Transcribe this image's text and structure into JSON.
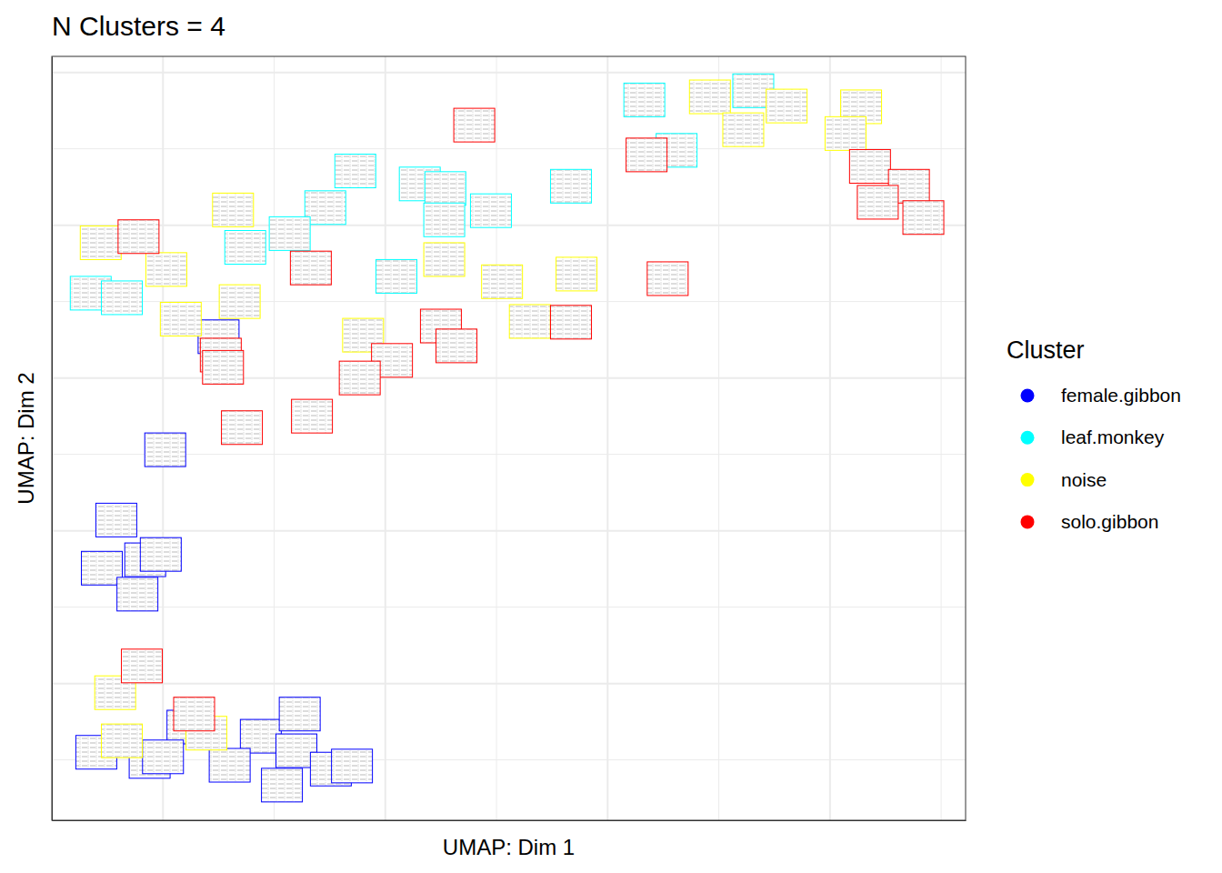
{
  "chart_data": {
    "type": "scatter",
    "title": "N Clusters = 4",
    "x_label": "UMAP: Dim 1",
    "y_label": "UMAP: Dim 2",
    "legend_title": "Cluster",
    "legend": "right",
    "grid": true,
    "tick_labels": false,
    "marker": "rect",
    "xlim": [
      -1.0,
      7.22
    ],
    "ylim": [
      -1.79,
      8.21
    ],
    "xticks": [
      0,
      1,
      2,
      3,
      4,
      5,
      6,
      7
    ],
    "yticks": [
      -1,
      0,
      1,
      2,
      3,
      4,
      5,
      6,
      7,
      8
    ],
    "series": [
      {
        "name": "female.gibbon",
        "color": "#0000ff",
        "x": [
          0.5,
          0.02,
          -0.42,
          -0.55,
          -0.16,
          -0.02,
          -0.23,
          -0.6,
          -0.12,
          0.22,
          0.88,
          1.23,
          1.2,
          0.6,
          1.07,
          1.51,
          1.7,
          0.0
        ],
        "y": [
          4.54,
          3.06,
          2.14,
          1.51,
          1.62,
          1.69,
          1.17,
          -0.9,
          -1.02,
          -0.57,
          -0.69,
          -0.4,
          -0.88,
          -1.07,
          -1.33,
          -1.12,
          -1.08,
          -0.96
        ]
      },
      {
        "name": "leaf.monkey",
        "color": "#00ffff",
        "x": [
          4.33,
          5.31,
          4.62,
          1.73,
          2.31,
          2.54,
          2.95,
          3.67,
          2.53,
          1.46,
          1.14,
          0.74,
          -0.65,
          -0.37,
          2.1
        ],
        "y": [
          7.64,
          7.76,
          6.98,
          6.71,
          6.54,
          6.48,
          6.19,
          6.51,
          6.07,
          6.23,
          5.89,
          5.71,
          5.11,
          5.05,
          5.33
        ]
      },
      {
        "name": "noise",
        "color": "#ffff00",
        "x": [
          4.92,
          5.61,
          6.28,
          5.22,
          6.14,
          0.63,
          -0.56,
          0.03,
          0.16,
          0.69,
          2.53,
          3.05,
          3.72,
          1.8,
          3.3,
          -0.43,
          -0.37,
          0.39
        ],
        "y": [
          7.68,
          7.56,
          7.55,
          7.25,
          7.2,
          6.2,
          5.77,
          5.42,
          4.77,
          5.0,
          5.55,
          5.26,
          5.36,
          4.56,
          4.74,
          -0.12,
          -0.75,
          -0.65
        ]
      },
      {
        "name": "solo.gibbon",
        "color": "#ff0000",
        "x": [
          4.35,
          6.36,
          6.71,
          6.43,
          6.84,
          2.8,
          -0.22,
          1.33,
          4.54,
          2.5,
          2.64,
          3.67,
          2.06,
          1.77,
          0.52,
          0.54,
          0.71,
          1.34,
          -0.19,
          0.28
        ],
        "y": [
          6.92,
          6.77,
          6.51,
          6.3,
          6.1,
          7.31,
          5.85,
          5.44,
          5.3,
          4.68,
          4.42,
          4.73,
          4.23,
          4.0,
          4.3,
          4.14,
          3.35,
          3.5,
          0.23,
          -0.4
        ]
      }
    ]
  }
}
